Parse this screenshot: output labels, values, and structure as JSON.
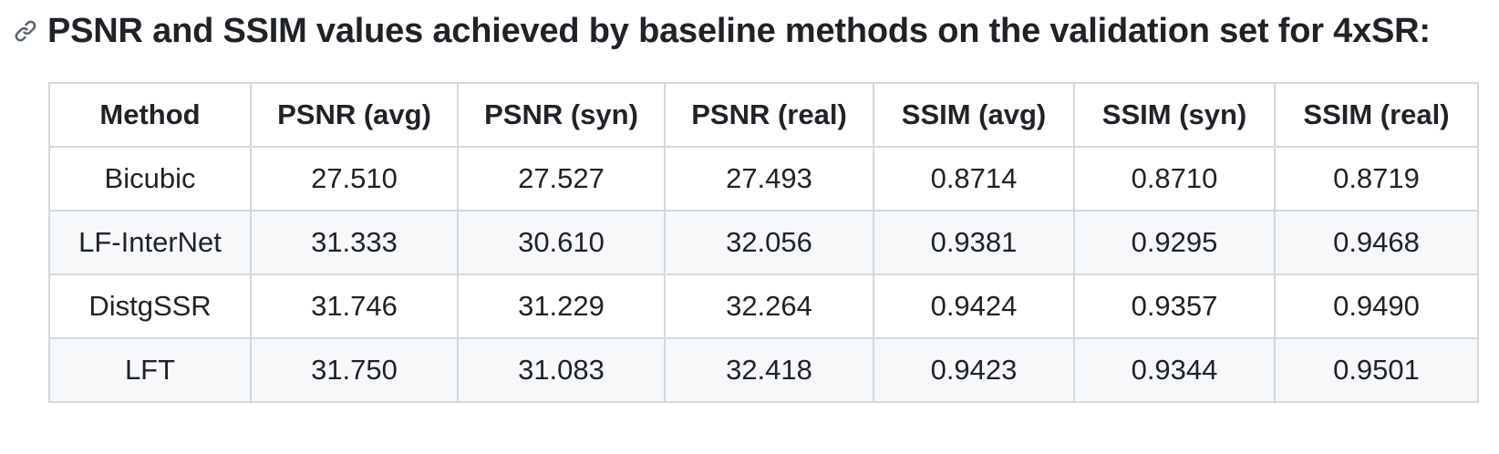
{
  "heading": {
    "title": "PSNR and SSIM values achieved by baseline methods on the validation set for 4xSR:",
    "anchor_icon": "link-icon"
  },
  "table": {
    "headers": [
      "Method",
      "PSNR (avg)",
      "PSNR (syn)",
      "PSNR (real)",
      "SSIM (avg)",
      "SSIM (syn)",
      "SSIM (real)"
    ],
    "rows": [
      [
        "Bicubic",
        "27.510",
        "27.527",
        "27.493",
        "0.8714",
        "0.8710",
        "0.8719"
      ],
      [
        "LF-InterNet",
        "31.333",
        "30.610",
        "32.056",
        "0.9381",
        "0.9295",
        "0.9468"
      ],
      [
        "DistgSSR",
        "31.746",
        "31.229",
        "32.264",
        "0.9424",
        "0.9357",
        "0.9490"
      ],
      [
        "LFT",
        "31.750",
        "31.083",
        "32.418",
        "0.9423",
        "0.9344",
        "0.9501"
      ]
    ]
  },
  "colors": {
    "text": "#1f2328",
    "border": "#d1d9e0",
    "stripe": "#f6f8fa",
    "icon": "#59636e"
  }
}
